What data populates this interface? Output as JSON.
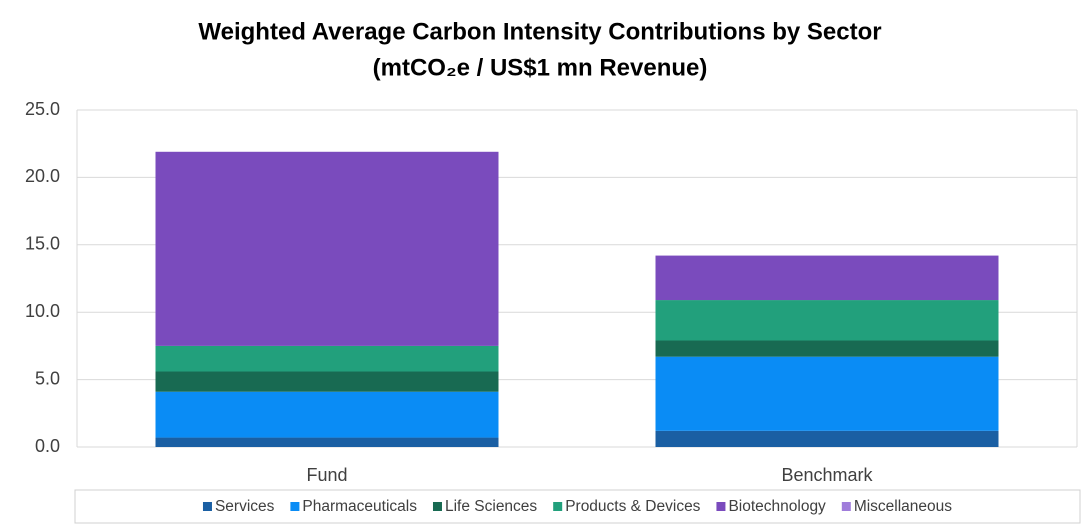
{
  "chart_data": {
    "type": "stacked_bar",
    "title": "Weighted Average Carbon Intensity Contributions by Sector",
    "subtitle": "(mtCO₂e / US$1 mn Revenue)",
    "categories": [
      "Fund",
      "Benchmark"
    ],
    "series": [
      {
        "name": "Services",
        "color": "#1a5fa3",
        "values": [
          0.7,
          1.2
        ]
      },
      {
        "name": "Pharmaceuticals",
        "color": "#0a8cf5",
        "values": [
          3.4,
          5.5
        ]
      },
      {
        "name": "Life Sciences",
        "color": "#186a52",
        "values": [
          1.5,
          1.2
        ]
      },
      {
        "name": "Products & Devices",
        "color": "#22a07c",
        "values": [
          1.9,
          3.0
        ]
      },
      {
        "name": "Biotechnology",
        "color": "#7a4bbd",
        "values": [
          14.4,
          3.3
        ]
      },
      {
        "name": "Miscellaneous",
        "color": "#a07ddb",
        "values": [
          0,
          0
        ]
      }
    ],
    "ylim": [
      0,
      25
    ],
    "yticks": [
      {
        "value": 0,
        "label": "0.0"
      },
      {
        "value": 5,
        "label": "5.0"
      },
      {
        "value": 10,
        "label": "10.0"
      },
      {
        "value": 15,
        "label": "15.0"
      },
      {
        "value": 20,
        "label": "20.0"
      },
      {
        "value": 25,
        "label": "25.0"
      }
    ],
    "grid": true,
    "legend": "bottom"
  }
}
